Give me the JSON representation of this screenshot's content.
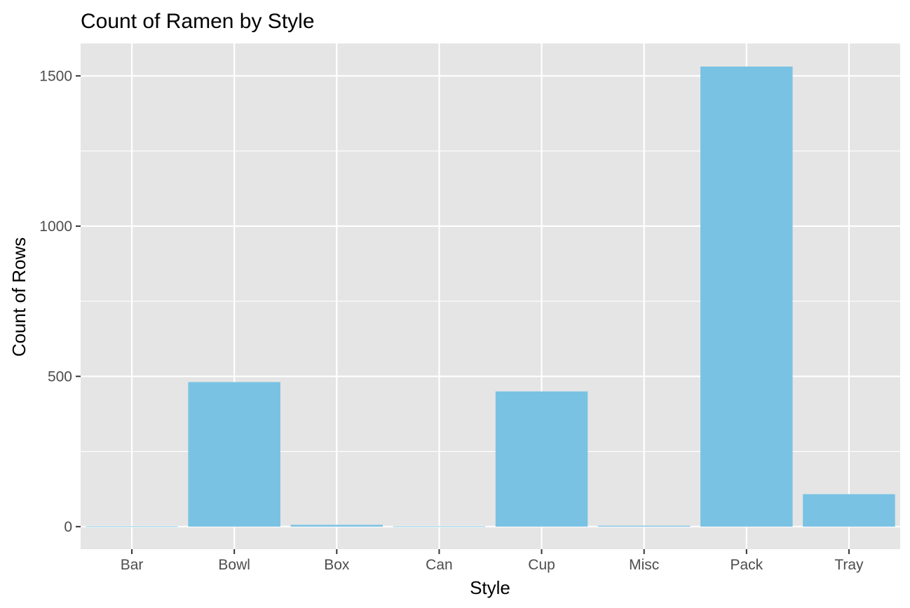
{
  "chart_data": {
    "type": "bar",
    "title": "Count of Ramen by Style",
    "xlabel": "Style",
    "ylabel": "Count of Rows",
    "categories": [
      "Bar",
      "Bowl",
      "Box",
      "Can",
      "Cup",
      "Misc",
      "Pack",
      "Tray"
    ],
    "values": [
      1,
      481,
      6,
      1,
      450,
      3,
      1531,
      108
    ],
    "ylim": [
      -75,
      1608
    ],
    "yticks": [
      0,
      500,
      1000,
      1500
    ],
    "ytick_labels": [
      "0",
      "500",
      "1000",
      "1500"
    ],
    "grid": true,
    "legend": "none",
    "colors": {
      "bar": "#79c2e4",
      "panel_background": "#e5e5e5",
      "grid": "#ffffff",
      "tick_text": "#4d4d4d",
      "tick_mark": "#333333",
      "title_text": "#000000"
    }
  }
}
